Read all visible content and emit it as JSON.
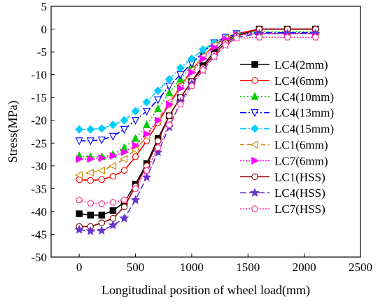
{
  "chart_data": {
    "type": "line",
    "title": "",
    "xlabel": "Longitudinal position of wheel load(mm)",
    "ylabel": "Stress(MPa)",
    "xlim": [
      -250,
      2500
    ],
    "ylim": [
      -50,
      5
    ],
    "xticks": [
      0,
      500,
      1000,
      1500,
      2000,
      2500
    ],
    "yticks": [
      5,
      0,
      -5,
      -10,
      -15,
      -20,
      -25,
      -30,
      -35,
      -40,
      -45,
      -50
    ],
    "grid": false,
    "legend_position": "right",
    "series": [
      {
        "name": "LC4(2mm)",
        "color": "#000000",
        "dash": "",
        "marker": "square",
        "fill": true,
        "x": [
          0,
          100,
          200,
          300,
          400,
          500,
          600,
          700,
          800,
          900,
          1000,
          1100,
          1200,
          1300,
          1400,
          1600,
          1850,
          2100
        ],
        "y": [
          -40.5,
          -40.8,
          -40.8,
          -39.8,
          -38,
          -34,
          -29.5,
          -24,
          -19,
          -15,
          -11.5,
          -8,
          -5,
          -2.5,
          -1.2,
          0,
          0,
          0
        ]
      },
      {
        "name": "LC4(6mm)",
        "color": "#ff0000",
        "dash": "",
        "marker": "circle",
        "fill": false,
        "x": [
          0,
          100,
          200,
          300,
          400,
          500,
          600,
          700,
          800,
          900,
          1000,
          1100,
          1200,
          1300,
          1400,
          1600,
          1850,
          2100
        ],
        "y": [
          -33,
          -33.2,
          -33,
          -32.3,
          -31,
          -28,
          -24.5,
          -20.5,
          -16.5,
          -12.5,
          -9,
          -6,
          -3.5,
          -2,
          -1,
          0,
          0,
          0
        ]
      },
      {
        "name": "LC4(10mm)",
        "color": "#00cc00",
        "dash": "2,3",
        "marker": "triangle",
        "fill": true,
        "x": [
          0,
          100,
          200,
          300,
          400,
          500,
          600,
          700,
          800,
          900,
          1000,
          1100,
          1200,
          1300,
          1400,
          1600,
          1850,
          2100
        ],
        "y": [
          -27.8,
          -28,
          -28,
          -27.5,
          -26,
          -24,
          -21,
          -17.5,
          -14,
          -11,
          -8,
          -5,
          -3,
          -1.8,
          -1,
          -0.5,
          -0.5,
          -0.5
        ]
      },
      {
        "name": "LC4(13mm)",
        "color": "#0000ff",
        "dash": "9,3,2,3",
        "marker": "triangle-down",
        "fill": false,
        "x": [
          0,
          100,
          200,
          300,
          400,
          500,
          600,
          700,
          800,
          900,
          1000,
          1100,
          1200,
          1300,
          1400,
          1600,
          1850,
          2100
        ],
        "y": [
          -24.5,
          -24.5,
          -24.3,
          -23.5,
          -22,
          -20,
          -18,
          -15.5,
          -12.5,
          -10,
          -7.5,
          -5,
          -3,
          -1.8,
          -1,
          -0.8,
          -0.8,
          -0.8
        ]
      },
      {
        "name": "LC4(15mm)",
        "color": "#00ccff",
        "dash": "9,3,2,3",
        "marker": "diamond",
        "fill": true,
        "x": [
          0,
          100,
          200,
          300,
          400,
          500,
          600,
          700,
          800,
          900,
          1000,
          1100,
          1200,
          1300,
          1400,
          1600,
          1850,
          2100
        ],
        "y": [
          -22,
          -22,
          -21.8,
          -21,
          -20,
          -18,
          -16,
          -13.5,
          -11,
          -8.5,
          -6.5,
          -4.5,
          -3,
          -2,
          -1.2,
          -1,
          -1,
          -1
        ]
      },
      {
        "name": "LC1(6mm)",
        "color": "#cc8800",
        "dash": "6,4",
        "marker": "triangle-left",
        "fill": false,
        "x": [
          0,
          100,
          200,
          300,
          400,
          500,
          600,
          700,
          800,
          900,
          1000,
          1100,
          1200,
          1300,
          1400,
          1600,
          1850,
          2100
        ],
        "y": [
          -32,
          -31.5,
          -31,
          -30,
          -28.5,
          -26.5,
          -23.5,
          -20,
          -16,
          -12.5,
          -9,
          -6,
          -3.5,
          -2,
          -1.2,
          -1,
          -1,
          -1
        ]
      },
      {
        "name": "LC7(6mm)",
        "color": "#ff00ff",
        "dash": "2,2",
        "marker": "triangle-right",
        "fill": true,
        "x": [
          0,
          100,
          200,
          300,
          400,
          500,
          600,
          700,
          800,
          900,
          1000,
          1100,
          1200,
          1300,
          1400,
          1600,
          1850,
          2100
        ],
        "y": [
          -28.5,
          -28.5,
          -28.3,
          -27.8,
          -27,
          -25.5,
          -23,
          -20,
          -16.5,
          -13,
          -9.5,
          -6.5,
          -4,
          -2.2,
          -1.2,
          -1,
          -1,
          -1
        ]
      },
      {
        "name": "LC1(HSS)",
        "color": "#8b0000",
        "dash": "",
        "marker": "circle",
        "fill": false,
        "x": [
          0,
          100,
          200,
          300,
          400,
          500,
          600,
          700,
          800,
          900,
          1000,
          1100,
          1200,
          1300,
          1400,
          1600,
          1850,
          2100
        ],
        "y": [
          -43.3,
          -43.3,
          -42.5,
          -41.5,
          -39,
          -34.5,
          -30,
          -24.5,
          -19,
          -15,
          -11.5,
          -8.5,
          -5.5,
          -3,
          -1.5,
          0,
          0,
          0
        ]
      },
      {
        "name": "LC4(HSS)",
        "color": "#6633cc",
        "dash": "9,4",
        "marker": "star",
        "fill": true,
        "x": [
          0,
          100,
          200,
          300,
          400,
          500,
          600,
          700,
          800,
          900,
          1000,
          1100,
          1200,
          1300,
          1400,
          1600,
          1850,
          2100
        ],
        "y": [
          -44,
          -44.3,
          -44.2,
          -43,
          -41.5,
          -37.5,
          -32.5,
          -27,
          -21.5,
          -16,
          -12,
          -9,
          -6,
          -3.5,
          -1.8,
          -1,
          -1,
          -1
        ]
      },
      {
        "name": "LC7(HSS)",
        "color": "#ff3399",
        "dash": "2,2",
        "marker": "pentagon",
        "fill": false,
        "x": [
          0,
          100,
          200,
          300,
          400,
          500,
          600,
          700,
          800,
          900,
          1000,
          1100,
          1200,
          1300,
          1400,
          1600,
          1850,
          2100
        ],
        "y": [
          -37.5,
          -38.2,
          -38.3,
          -38,
          -37.5,
          -35,
          -31,
          -26,
          -21,
          -16.5,
          -12.5,
          -9,
          -6,
          -3.5,
          -2,
          -1.8,
          -1.8,
          -1.8
        ]
      }
    ]
  }
}
